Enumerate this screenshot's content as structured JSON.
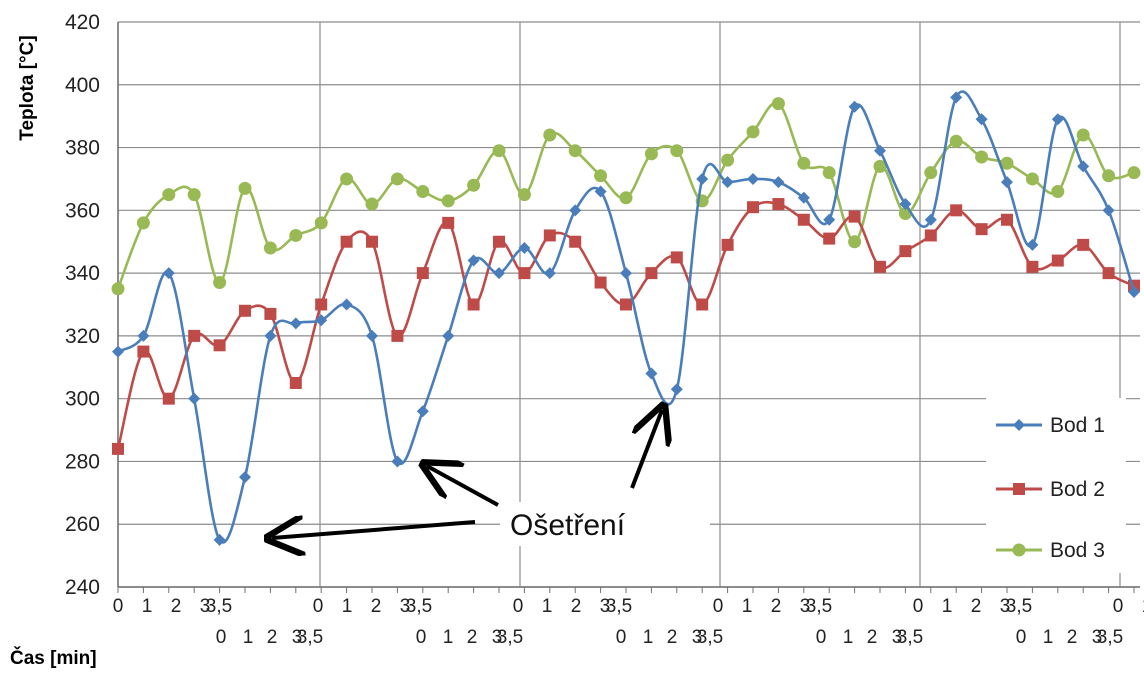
{
  "chart_data": {
    "type": "line",
    "ylabel": "Teplota [°C]",
    "xlabel": "Čas [min]",
    "ylim": [
      240,
      420
    ],
    "y_ticks": [
      240,
      260,
      280,
      300,
      320,
      340,
      360,
      380,
      400,
      420
    ],
    "grid": true,
    "legend_position": "bottom-right",
    "x_tick_labels_row1": [
      "0",
      "1",
      "2",
      "3",
      "3,5",
      "0",
      "1",
      "2",
      "3",
      "3,5",
      "0",
      "1",
      "2",
      "3",
      "3,5",
      "0",
      "1",
      "2",
      "3",
      "3,5",
      "0",
      "1",
      "2",
      "3",
      "3,5",
      "0",
      "1",
      "2",
      "3",
      "3,5"
    ],
    "x_tick_labels_row2": [
      "0",
      "1",
      "2",
      "3",
      "3,5",
      "0",
      "1",
      "2",
      "3",
      "3,5",
      "0",
      "1",
      "2",
      "3",
      "3,5",
      "0",
      "1",
      "2",
      "3",
      "3,5",
      "0",
      "1",
      "2",
      "3",
      "3,5"
    ],
    "series": [
      {
        "name": "Bod 1",
        "color": "#4a7ebb",
        "marker": "diamond",
        "values": [
          315,
          320,
          340,
          300,
          255,
          275,
          320,
          324,
          325,
          330,
          320,
          280,
          296,
          320,
          344,
          340,
          348,
          340,
          360,
          366,
          340,
          308,
          303,
          370,
          369,
          370,
          369,
          364,
          357,
          393,
          379,
          362,
          357,
          396,
          389,
          369,
          349,
          389,
          374,
          360,
          334
        ]
      },
      {
        "name": "Bod 2",
        "color": "#be4b48",
        "marker": "square",
        "values": [
          284,
          315,
          300,
          320,
          317,
          328,
          327,
          305,
          330,
          350,
          350,
          320,
          340,
          356,
          330,
          350,
          340,
          352,
          350,
          337,
          330,
          340,
          345,
          330,
          349,
          361,
          362,
          357,
          351,
          358,
          342,
          347,
          352,
          360,
          354,
          357,
          342,
          344,
          349,
          340,
          336
        ]
      },
      {
        "name": "Bod 3",
        "color": "#98b954",
        "marker": "circle",
        "values": [
          335,
          356,
          365,
          365,
          337,
          367,
          348,
          352,
          356,
          370,
          362,
          370,
          366,
          363,
          368,
          379,
          365,
          384,
          379,
          371,
          364,
          378,
          379,
          363,
          376,
          385,
          394,
          375,
          372,
          350,
          374,
          359,
          372,
          382,
          377,
          375,
          370,
          366,
          384,
          371,
          372
        ]
      }
    ],
    "annotation": "Ošetření"
  }
}
